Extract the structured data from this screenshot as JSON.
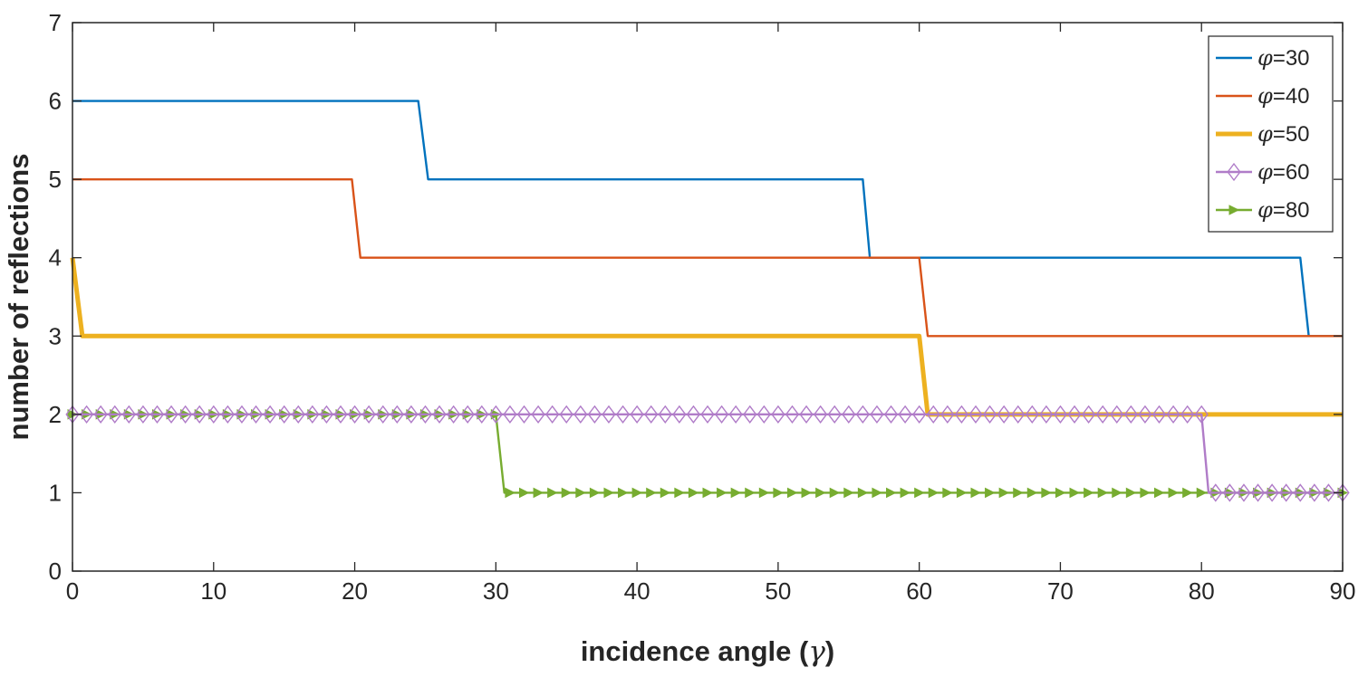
{
  "chart_data": {
    "type": "line",
    "title": "",
    "xlabel_prefix": "incidence angle (",
    "xlabel_symbol": "γ",
    "xlabel_suffix": ")",
    "ylabel": "number of reflections",
    "xlim": [
      0,
      90
    ],
    "ylim": [
      0,
      7
    ],
    "xticks": [
      0,
      10,
      20,
      30,
      40,
      50,
      60,
      70,
      80,
      90
    ],
    "yticks": [
      0,
      1,
      2,
      3,
      4,
      5,
      6,
      7
    ],
    "grid": false,
    "legend_position": "top-right",
    "legend_symbol": "φ",
    "series": [
      {
        "name": "=30",
        "color": "#0072BD",
        "marker": "none",
        "weight": "normal",
        "x": [
          0,
          24.5,
          25.2,
          56,
          56.5,
          87,
          87.6,
          90
        ],
        "y": [
          6,
          6,
          5,
          5,
          4,
          4,
          3,
          3
        ]
      },
      {
        "name": "=40",
        "color": "#D95319",
        "marker": "none",
        "weight": "normal",
        "x": [
          0,
          19.8,
          20.4,
          60,
          60.6,
          90
        ],
        "y": [
          5,
          5,
          4,
          4,
          3,
          3
        ]
      },
      {
        "name": "=50",
        "color": "#EDB120",
        "marker": "none",
        "weight": "thick",
        "x": [
          0,
          0.7,
          60,
          60.6,
          90
        ],
        "y": [
          4,
          3,
          3,
          2,
          2
        ]
      },
      {
        "name": "=60",
        "color": "#B07CC8",
        "marker": "diamond",
        "weight": "normal",
        "x": [
          0,
          80,
          80.5,
          90
        ],
        "y": [
          2,
          2,
          1,
          1
        ],
        "marker_step": 1
      },
      {
        "name": "=80",
        "color": "#77AC30",
        "marker": "triangle-right",
        "weight": "normal",
        "x": [
          0,
          30,
          30.6,
          90
        ],
        "y": [
          2,
          2,
          1,
          1
        ],
        "marker_step": 1
      }
    ]
  }
}
